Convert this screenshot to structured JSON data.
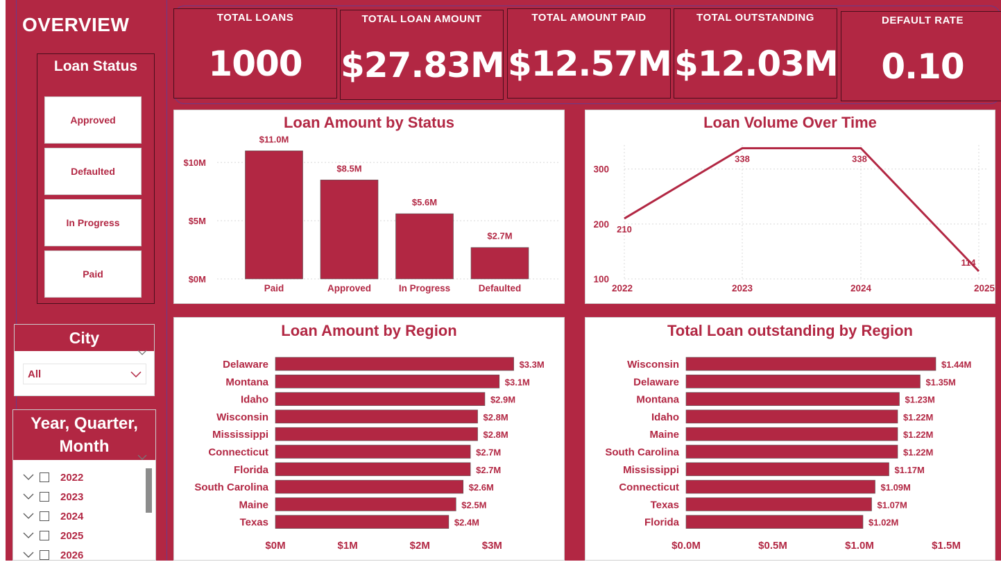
{
  "overview": {
    "title": "OVERVIEW"
  },
  "loan_status": {
    "title": "Loan Status",
    "buttons": [
      "Approved",
      "Defaulted",
      "In Progress",
      "Paid"
    ]
  },
  "city": {
    "title": "City",
    "selected": "All"
  },
  "ymq": {
    "title_line1": "Year, Quarter,",
    "title_line2": "Month",
    "items": [
      "2022",
      "2023",
      "2024",
      "2025",
      "2026"
    ]
  },
  "kpis": [
    {
      "title": "TOTAL LOANS",
      "value": "1000"
    },
    {
      "title": "TOTAL LOAN AMOUNT",
      "value": "$27.83M"
    },
    {
      "title": "TOTAL AMOUNT PAID",
      "value": "$12.57M"
    },
    {
      "title": "TOTAL OUTSTANDING",
      "value": "$12.03M"
    },
    {
      "title": "DEFAULT RATE",
      "value": "0.10"
    }
  ],
  "colors": {
    "accent": "#b22743",
    "white": "#ffffff",
    "grid": "#d8d8d8"
  },
  "chart_data": [
    {
      "type": "bar",
      "title": "Loan Amount by Status",
      "categories": [
        "Paid",
        "Approved",
        "In Progress",
        "Defaulted"
      ],
      "values": [
        11.0,
        8.5,
        5.6,
        2.7
      ],
      "data_labels": [
        "$11.0M",
        "$8.5M",
        "$5.6M",
        "$2.7M"
      ],
      "yticks": [
        0,
        5,
        10
      ],
      "ytick_labels": [
        "$0M",
        "$5M",
        "$10M"
      ],
      "ylim": [
        0,
        11.5
      ],
      "grid": true
    },
    {
      "type": "line",
      "title": "Loan Volume Over Time",
      "x": [
        "2022",
        "2023",
        "2024",
        "2025"
      ],
      "values": [
        210,
        338,
        338,
        114
      ],
      "data_labels": [
        "210",
        "338",
        "338",
        "114"
      ],
      "yticks": [
        100,
        200,
        300
      ],
      "ytick_labels": [
        "100",
        "200",
        "300"
      ],
      "ylim": [
        100,
        340
      ],
      "grid": true
    },
    {
      "type": "bar",
      "orientation": "horizontal",
      "title": "Loan Amount by Region",
      "categories": [
        "Delaware",
        "Montana",
        "Idaho",
        "Wisconsin",
        "Mississippi",
        "Connecticut",
        "Florida",
        "South Carolina",
        "Maine",
        "Texas"
      ],
      "values": [
        3.3,
        3.1,
        2.9,
        2.8,
        2.8,
        2.7,
        2.7,
        2.6,
        2.5,
        2.4
      ],
      "data_labels": [
        "$3.3M",
        "$3.1M",
        "$2.9M",
        "$2.8M",
        "$2.8M",
        "$2.7M",
        "$2.7M",
        "$2.6M",
        "$2.5M",
        "$2.4M"
      ],
      "xticks": [
        0,
        1,
        2,
        3
      ],
      "xtick_labels": [
        "$0M",
        "$1M",
        "$2M",
        "$3M"
      ],
      "xlim": [
        0,
        3.4
      ]
    },
    {
      "type": "bar",
      "orientation": "horizontal",
      "title": "Total Loan outstanding by Region",
      "categories": [
        "Wisconsin",
        "Delaware",
        "Montana",
        "Idaho",
        "Maine",
        "South Carolina",
        "Mississippi",
        "Connecticut",
        "Texas",
        "Florida"
      ],
      "values": [
        1.44,
        1.35,
        1.23,
        1.22,
        1.22,
        1.22,
        1.17,
        1.09,
        1.07,
        1.02
      ],
      "data_labels": [
        "$1.44M",
        "$1.35M",
        "$1.23M",
        "$1.22M",
        "$1.22M",
        "$1.22M",
        "$1.17M",
        "$1.09M",
        "$1.07M",
        "$1.02M"
      ],
      "xticks": [
        0,
        0.5,
        1.0,
        1.5
      ],
      "xtick_labels": [
        "$0.0M",
        "$0.5M",
        "$1.0M",
        "$1.5M"
      ],
      "xlim": [
        0,
        1.6
      ]
    }
  ]
}
